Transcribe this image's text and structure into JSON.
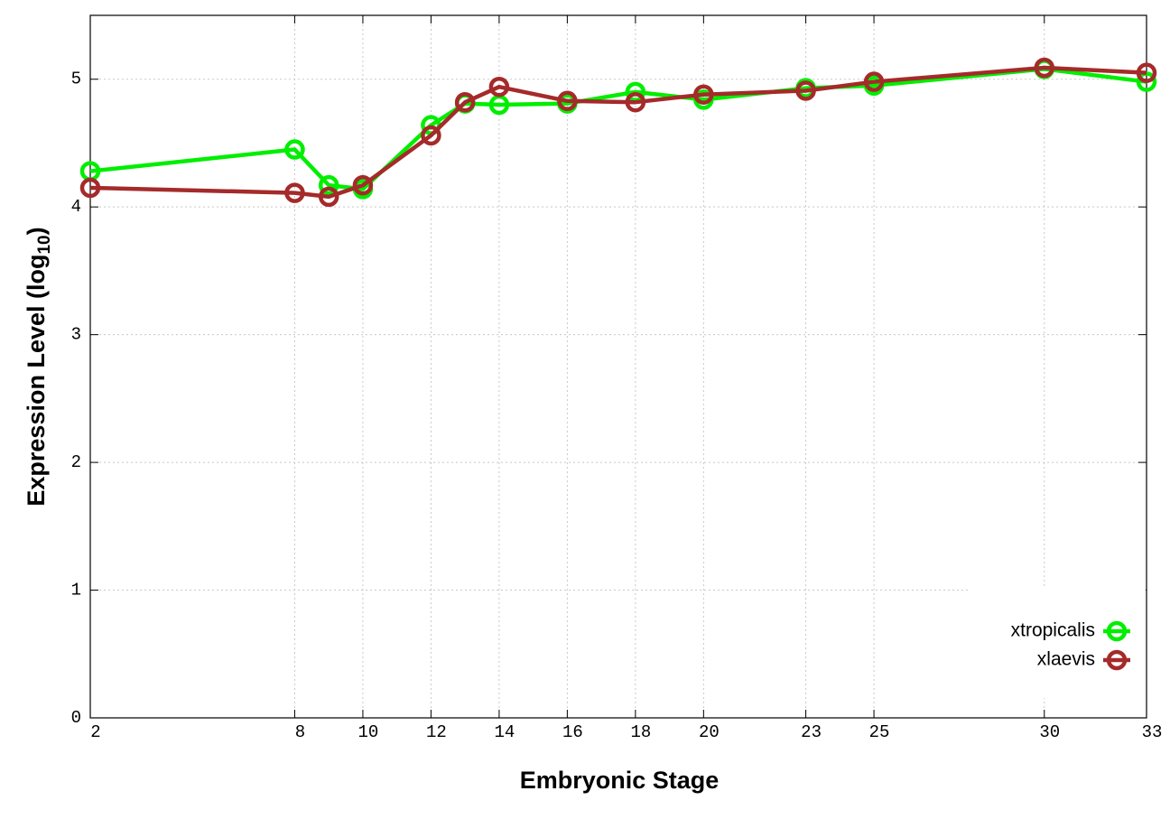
{
  "chart_data": {
    "type": "line",
    "xlabel": "Embryonic Stage",
    "ylabel": [
      "Expression Level (log",
      "10",
      ")"
    ],
    "x": [
      2,
      8,
      9,
      10,
      12,
      13,
      14,
      16,
      18,
      20,
      23,
      25,
      30,
      33
    ],
    "series": [
      {
        "name": "xtropicalis",
        "color": "#00ee00",
        "values": [
          4.28,
          4.45,
          4.17,
          4.14,
          4.64,
          4.81,
          4.8,
          4.81,
          4.9,
          4.84,
          4.93,
          4.95,
          5.08,
          4.98
        ]
      },
      {
        "name": "xlaevis",
        "color": "#a52a2a",
        "values": [
          4.15,
          4.11,
          4.08,
          4.17,
          4.56,
          4.82,
          4.94,
          4.83,
          4.82,
          4.88,
          4.91,
          4.98,
          5.09,
          5.05
        ]
      }
    ],
    "xlim": [
      2,
      33
    ],
    "xticks": [
      2,
      8,
      10,
      12,
      14,
      16,
      18,
      20,
      23,
      25,
      30,
      33
    ],
    "ylim": [
      0,
      5.5
    ],
    "yticks": [
      0,
      1,
      2,
      3,
      4,
      5
    ],
    "grid": true,
    "legend": "bottom-right"
  }
}
